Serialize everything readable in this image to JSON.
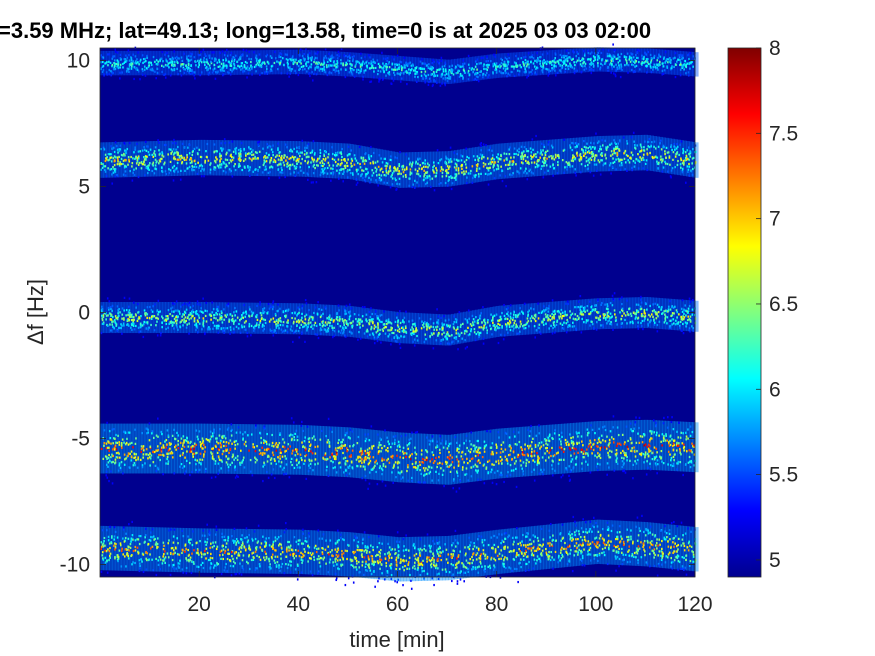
{
  "chart_data": {
    "type": "heatmap",
    "title": "=3.59 MHz;  lat=49.13; long=13.58, time=0 is at 2025 03 03 02:00",
    "xlabel": "time [min]",
    "ylabel": "Δf [Hz]",
    "xlim": [
      0,
      120
    ],
    "ylim": [
      -10.5,
      10.5
    ],
    "x_ticks": [
      20,
      40,
      60,
      80,
      100,
      120
    ],
    "x_tick_labels": [
      "20",
      "40",
      "60",
      "80",
      "100",
      "120"
    ],
    "y_ticks": [
      10,
      5,
      0,
      -5,
      -10
    ],
    "y_tick_labels": [
      "10",
      "5",
      "0",
      "-5",
      "-10"
    ],
    "colorbar": {
      "colormap": "jet",
      "range": [
        4.9,
        8.0
      ],
      "ticks": [
        8,
        7.5,
        7,
        6.5,
        6,
        5.5,
        5
      ],
      "tick_labels": [
        "8",
        "7.5",
        "7",
        "6.5",
        "6",
        "5.5",
        "5"
      ]
    },
    "background_color": "#00008f",
    "bands": [
      {
        "center_hz": 9.9,
        "intensity": 0.22,
        "width_hz": 0.22,
        "track": [
          [
            0,
            9.9
          ],
          [
            20,
            9.9
          ],
          [
            40,
            9.95
          ],
          [
            50,
            9.85
          ],
          [
            60,
            9.7
          ],
          [
            70,
            9.55
          ],
          [
            80,
            9.8
          ],
          [
            100,
            10.05
          ],
          [
            110,
            10.0
          ],
          [
            120,
            9.85
          ]
        ]
      },
      {
        "center_hz": 6.1,
        "intensity": 0.55,
        "width_hz": 0.32,
        "track": [
          [
            0,
            6.05
          ],
          [
            20,
            6.15
          ],
          [
            40,
            6.1
          ],
          [
            50,
            6.0
          ],
          [
            60,
            5.65
          ],
          [
            70,
            5.7
          ],
          [
            80,
            6.0
          ],
          [
            100,
            6.3
          ],
          [
            110,
            6.35
          ],
          [
            120,
            6.05
          ]
        ]
      },
      {
        "center_hz": -0.2,
        "intensity": 0.45,
        "width_hz": 0.28,
        "track": [
          [
            0,
            -0.2
          ],
          [
            20,
            -0.2
          ],
          [
            40,
            -0.25
          ],
          [
            50,
            -0.35
          ],
          [
            60,
            -0.6
          ],
          [
            70,
            -0.7
          ],
          [
            80,
            -0.35
          ],
          [
            100,
            -0.05
          ],
          [
            110,
            0.0
          ],
          [
            120,
            -0.15
          ]
        ]
      },
      {
        "center_hz": -5.4,
        "intensity": 0.8,
        "width_hz": 0.45,
        "track": [
          [
            0,
            -5.4
          ],
          [
            20,
            -5.4
          ],
          [
            40,
            -5.45
          ],
          [
            50,
            -5.55
          ],
          [
            60,
            -5.75
          ],
          [
            70,
            -5.85
          ],
          [
            80,
            -5.6
          ],
          [
            100,
            -5.3
          ],
          [
            110,
            -5.25
          ],
          [
            120,
            -5.35
          ]
        ]
      },
      {
        "center_hz": -9.4,
        "intensity": 0.7,
        "width_hz": 0.4,
        "track": [
          [
            0,
            -9.35
          ],
          [
            20,
            -9.45
          ],
          [
            40,
            -9.5
          ],
          [
            50,
            -9.6
          ],
          [
            60,
            -9.8
          ],
          [
            70,
            -9.75
          ],
          [
            80,
            -9.5
          ],
          [
            100,
            -9.1
          ],
          [
            110,
            -9.2
          ],
          [
            120,
            -9.4
          ]
        ]
      }
    ]
  }
}
